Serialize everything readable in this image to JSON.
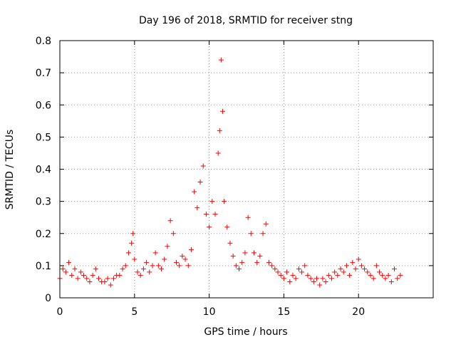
{
  "chart_data": {
    "type": "scatter",
    "title": "Day 196 of 2018, SRMTID for receiver stng",
    "xlabel": "GPS time / hours",
    "ylabel": "SRMTID / TECUs",
    "xlim": [
      0,
      25
    ],
    "ylim": [
      0,
      0.8
    ],
    "xticks": [
      0,
      5,
      10,
      15,
      20
    ],
    "yticks": [
      0,
      0.1,
      0.2,
      0.3,
      0.4,
      0.5,
      0.6,
      0.7,
      0.8
    ],
    "xtick_labels": [
      "0",
      "5",
      "10",
      "15",
      "20"
    ],
    "ytick_labels": [
      "0",
      "0.1",
      "0.2",
      "0.3",
      "0.4",
      "0.5",
      "0.6",
      "0.7",
      "0.8"
    ],
    "grid": true,
    "marker": "+",
    "color": "#ff0000",
    "series": [
      {
        "name": "SRMTID",
        "x": [
          0.0,
          0.2,
          0.4,
          0.6,
          0.8,
          1.0,
          1.2,
          1.4,
          1.6,
          1.8,
          2.0,
          2.2,
          2.4,
          2.6,
          2.8,
          3.0,
          3.2,
          3.4,
          3.6,
          3.8,
          4.0,
          4.2,
          4.4,
          4.6,
          4.8,
          4.9,
          5.0,
          5.2,
          5.4,
          5.6,
          5.8,
          6.0,
          6.2,
          6.4,
          6.6,
          6.8,
          7.0,
          7.2,
          7.4,
          7.6,
          7.8,
          8.0,
          8.2,
          8.4,
          8.6,
          8.8,
          9.0,
          9.2,
          9.4,
          9.6,
          9.8,
          10.0,
          10.2,
          10.4,
          10.6,
          10.7,
          10.8,
          10.9,
          11.0,
          11.2,
          11.4,
          11.6,
          11.8,
          12.0,
          12.2,
          12.4,
          12.6,
          12.8,
          13.0,
          13.2,
          13.4,
          13.6,
          13.8,
          14.0,
          14.2,
          14.4,
          14.6,
          14.8,
          15.0,
          15.2,
          15.4,
          15.6,
          15.8,
          16.0,
          16.2,
          16.4,
          16.6,
          16.8,
          17.0,
          17.2,
          17.4,
          17.6,
          17.8,
          18.0,
          18.2,
          18.4,
          18.6,
          18.8,
          19.0,
          19.2,
          19.4,
          19.6,
          19.8,
          20.0,
          20.2,
          20.4,
          20.6,
          20.8,
          21.0,
          21.2,
          21.4,
          21.6,
          21.8,
          22.0,
          22.2,
          22.4,
          22.6,
          22.8
        ],
        "y": [
          0.06,
          0.09,
          0.08,
          0.11,
          0.07,
          0.09,
          0.06,
          0.08,
          0.07,
          0.06,
          0.05,
          0.07,
          0.09,
          0.06,
          0.05,
          0.05,
          0.06,
          0.04,
          0.06,
          0.07,
          0.07,
          0.09,
          0.1,
          0.14,
          0.17,
          0.2,
          0.12,
          0.08,
          0.07,
          0.09,
          0.11,
          0.08,
          0.1,
          0.14,
          0.1,
          0.09,
          0.12,
          0.16,
          0.24,
          0.2,
          0.11,
          0.1,
          0.13,
          0.12,
          0.1,
          0.15,
          0.33,
          0.28,
          0.36,
          0.41,
          0.26,
          0.22,
          0.3,
          0.26,
          0.45,
          0.52,
          0.74,
          0.58,
          0.3,
          0.22,
          0.17,
          0.13,
          0.1,
          0.09,
          0.11,
          0.14,
          0.25,
          0.2,
          0.14,
          0.11,
          0.13,
          0.2,
          0.23,
          0.11,
          0.1,
          0.09,
          0.08,
          0.07,
          0.06,
          0.08,
          0.05,
          0.07,
          0.06,
          0.09,
          0.08,
          0.1,
          0.07,
          0.06,
          0.05,
          0.06,
          0.04,
          0.06,
          0.05,
          0.07,
          0.06,
          0.08,
          0.07,
          0.09,
          0.08,
          0.1,
          0.07,
          0.11,
          0.09,
          0.12,
          0.1,
          0.09,
          0.08,
          0.07,
          0.06,
          0.1,
          0.08,
          0.07,
          0.06,
          0.07,
          0.05,
          0.09,
          0.06,
          0.07
        ]
      }
    ]
  }
}
